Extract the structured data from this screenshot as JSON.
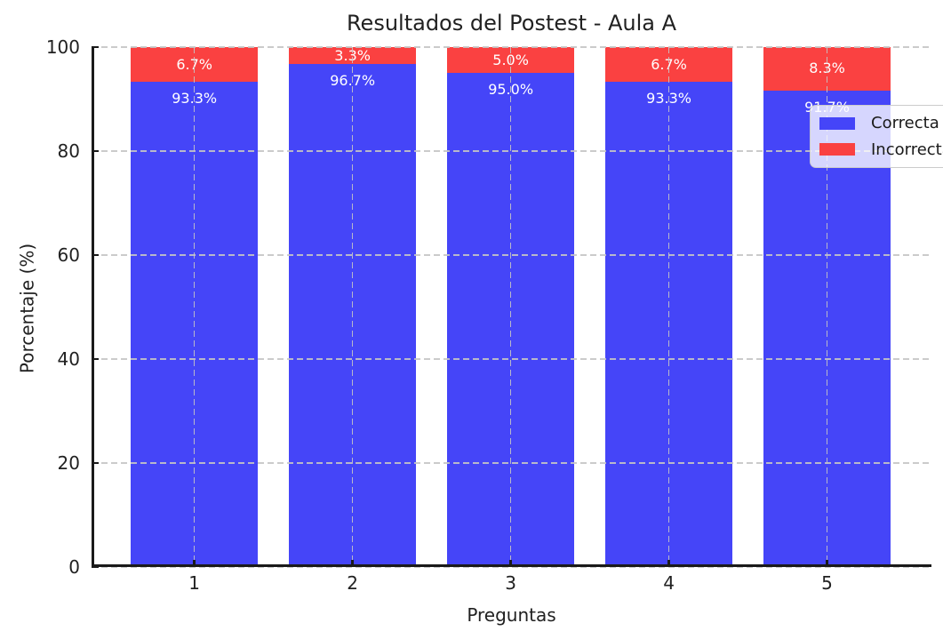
{
  "chart_data": {
    "type": "bar",
    "stacked": true,
    "title": "Resultados del Postest - Aula A",
    "xlabel": "Preguntas",
    "ylabel": "Porcentaje (%)",
    "categories": [
      "1",
      "2",
      "3",
      "4",
      "5"
    ],
    "series": [
      {
        "name": "Correcta (%)",
        "color": "#4545f8",
        "values": [
          93.3,
          96.7,
          95.0,
          93.3,
          91.7
        ],
        "labels": [
          "93.3%",
          "96.7%",
          "95.0%",
          "93.3%",
          "91.7%"
        ],
        "label_position": "below-top"
      },
      {
        "name": "Incorrecta (%)",
        "color": "#fa4141",
        "values": [
          6.7,
          3.3,
          5.0,
          6.7,
          8.3
        ],
        "labels": [
          "6.7%",
          "3.3%",
          "5.0%",
          "6.7%",
          "8.3%"
        ],
        "label_position": "center"
      }
    ],
    "ylim": [
      0,
      100
    ],
    "yticks": [
      0,
      20,
      40,
      60,
      80,
      100
    ],
    "grid": true,
    "grid_style": "dashed",
    "legend_position": "upper right",
    "legend_entries": [
      "Correcta (%)",
      "Incorrecta (%)"
    ],
    "colors": {
      "correct": "#4545f8",
      "incorrect": "#fa4141",
      "grid": "#c5c5c5",
      "axis": "#1a1a1a",
      "bar_label_text": "#ffffff"
    }
  }
}
